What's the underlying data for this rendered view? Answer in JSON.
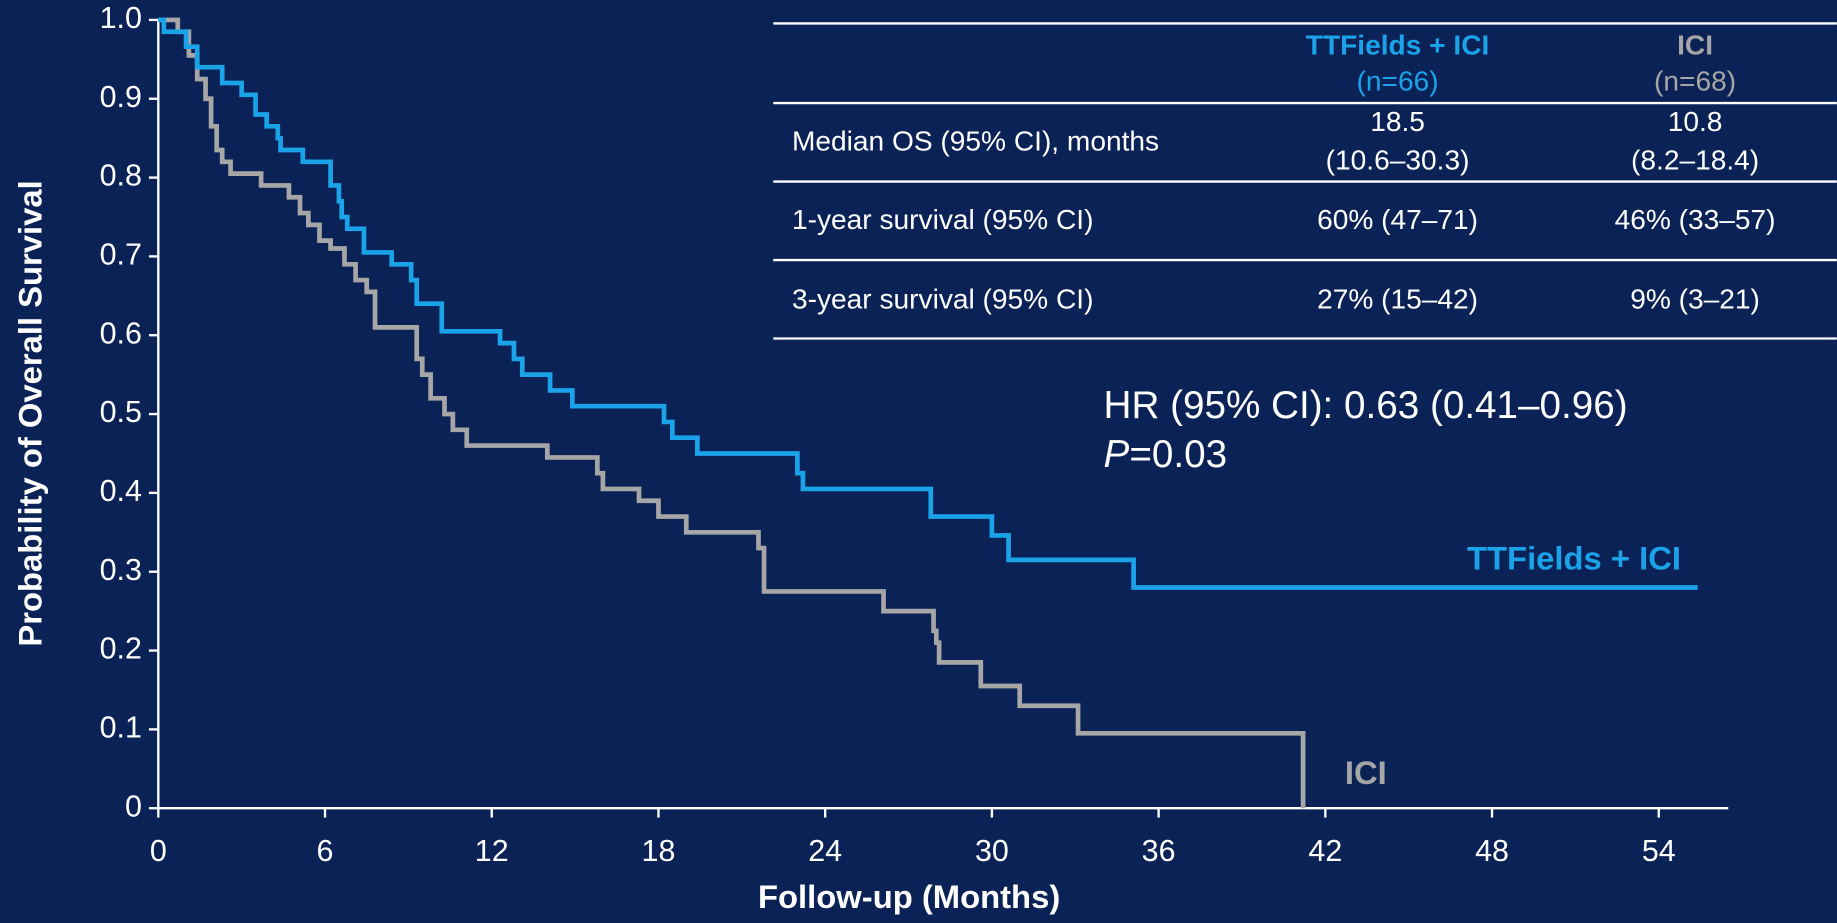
{
  "chart_data": {
    "type": "step",
    "x_label": "Follow-up (Months)",
    "y_label": "Probability of Overall Survival",
    "xlim": [
      0,
      56.5
    ],
    "ylim": [
      0,
      1
    ],
    "xticks": [
      0,
      6,
      12,
      18,
      24,
      30,
      36,
      42,
      48,
      54
    ],
    "yticks": [
      0,
      0.1,
      0.2,
      0.3,
      0.4,
      0.5,
      0.6,
      0.7,
      0.8,
      0.9,
      {
        "value": 1,
        "label": "1.0"
      }
    ],
    "series": [
      {
        "name": "TTFields + ICI",
        "color": "#1ba3e9",
        "x": [
          0,
          0.2,
          1.0,
          1.4,
          2.3,
          3.0,
          3.5,
          3.9,
          4.3,
          4.4,
          5.2,
          6.2,
          6.5,
          6.6,
          6.8,
          7.4,
          8.4,
          9.1,
          9.3,
          10.2,
          12.3,
          12.8,
          13.1,
          14.1,
          14.9,
          18.2,
          18.5,
          19.4,
          23.0,
          23.2,
          27.8,
          30.0,
          30.6,
          35.1,
          55.4
        ],
        "values": [
          1.0,
          0.985,
          0.966,
          0.94,
          0.92,
          0.905,
          0.88,
          0.865,
          0.85,
          0.835,
          0.82,
          0.79,
          0.77,
          0.75,
          0.735,
          0.705,
          0.69,
          0.67,
          0.64,
          0.605,
          0.59,
          0.57,
          0.55,
          0.53,
          0.51,
          0.49,
          0.47,
          0.45,
          0.425,
          0.405,
          0.37,
          0.346,
          0.315,
          0.28,
          0.28
        ]
      },
      {
        "name": "ICI",
        "color": "#a6a6a6",
        "x": [
          0,
          0.7,
          1.1,
          1.4,
          1.7,
          1.9,
          2.1,
          2.3,
          2.6,
          3.7,
          4.7,
          5.1,
          5.4,
          5.8,
          6.2,
          6.7,
          7.1,
          7.5,
          7.8,
          9.3,
          9.5,
          9.8,
          10.3,
          10.6,
          11.1,
          14.0,
          15.8,
          16.0,
          17.3,
          18.0,
          19.0,
          21.6,
          21.8,
          26.1,
          27.9,
          28.0,
          28.1,
          29.6,
          31.0,
          33.1,
          41.2
        ],
        "values": [
          1.0,
          0.985,
          0.955,
          0.925,
          0.9,
          0.865,
          0.835,
          0.82,
          0.805,
          0.79,
          0.775,
          0.755,
          0.74,
          0.72,
          0.71,
          0.69,
          0.67,
          0.655,
          0.61,
          0.57,
          0.55,
          0.52,
          0.5,
          0.48,
          0.46,
          0.445,
          0.425,
          0.405,
          0.39,
          0.37,
          0.35,
          0.33,
          0.275,
          0.25,
          0.225,
          0.21,
          0.185,
          0.155,
          0.13,
          0.095,
          0.0
        ]
      }
    ],
    "table": {
      "header": [
        {
          "name": "TTFields + ICI",
          "n": "(n=66)"
        },
        {
          "name": "ICI",
          "n": "(n=68)"
        }
      ],
      "rows": [
        {
          "label": "Median OS (95% CI), months",
          "cells": [
            [
              "18.5",
              "(10.6–30.3)"
            ],
            [
              "10.8",
              "(8.2–18.4)"
            ]
          ]
        },
        {
          "label": "1-year survival (95% CI)",
          "cells": [
            [
              "60% (47–71)"
            ],
            [
              "46% (33–57)"
            ]
          ]
        },
        {
          "label": "3-year survival (95% CI)",
          "cells": [
            [
              "27% (15–42)"
            ],
            [
              "9% (3–21)"
            ]
          ]
        }
      ]
    },
    "hr_text": "HR (95% CI): 0.63 (0.41–0.96)",
    "p_symbol": "P",
    "p_text": "=0.03"
  }
}
